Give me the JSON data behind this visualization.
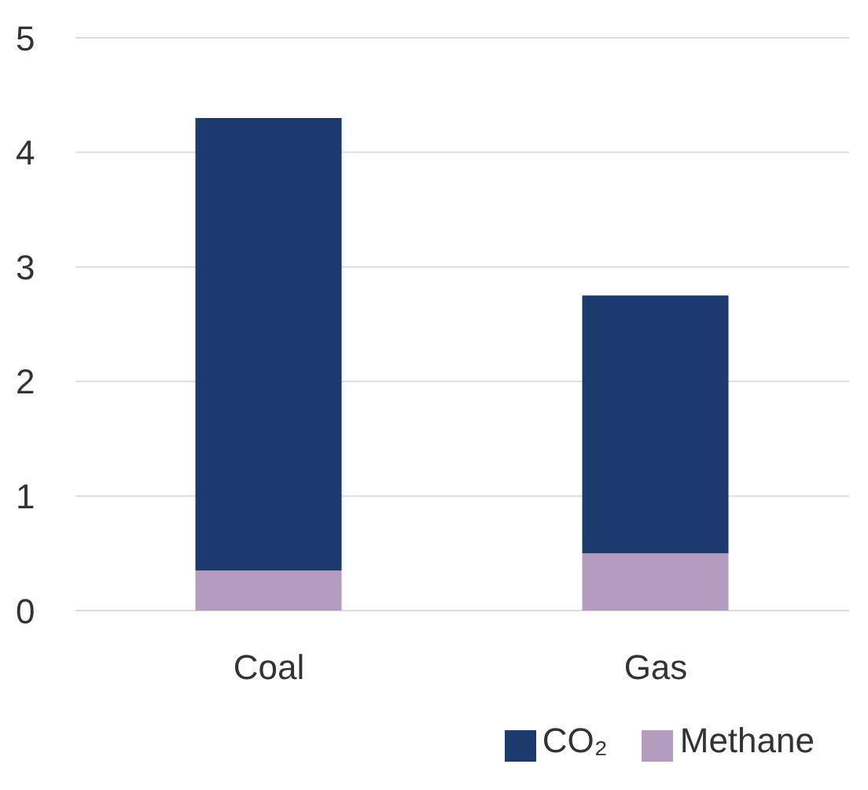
{
  "chart_data": {
    "type": "bar",
    "stacked": true,
    "categories": [
      "Coal",
      "Gas"
    ],
    "series": [
      {
        "name": "Methane",
        "color": "#b49cbf",
        "values": [
          0.35,
          0.5
        ]
      },
      {
        "name": "CO₂",
        "color": "#1c3a6e",
        "values": [
          3.95,
          2.25
        ]
      }
    ],
    "ylim": [
      0,
      5
    ],
    "yticks": [
      0,
      1,
      2,
      3,
      4,
      5
    ],
    "grid": "y",
    "legend": "bottom"
  }
}
